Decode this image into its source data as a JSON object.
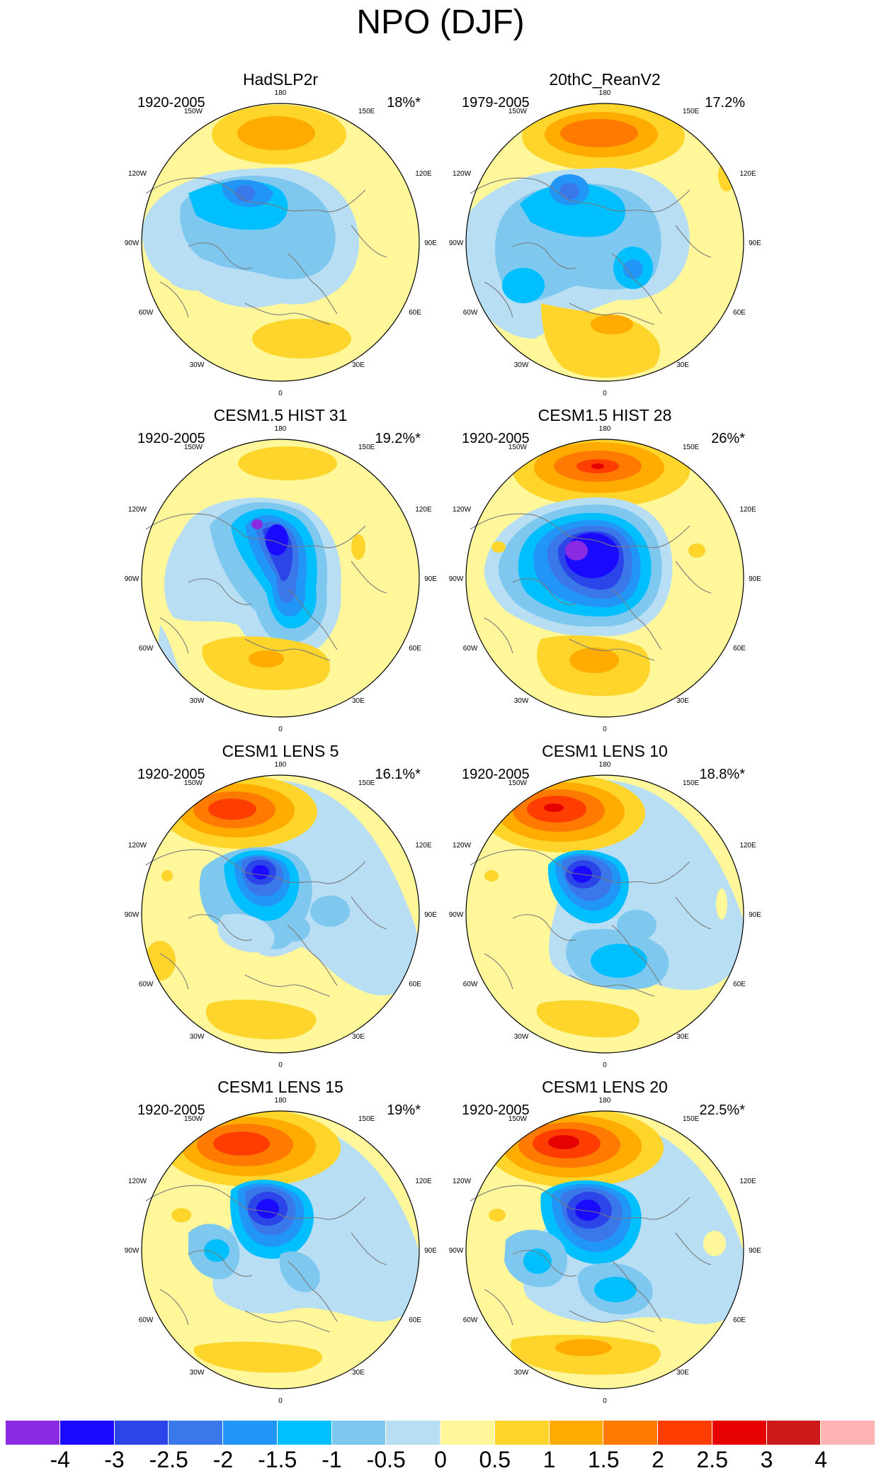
{
  "title": "NPO (DJF)",
  "lon_labels": {
    "top": "180",
    "bottom": "0",
    "upper_left": "150W",
    "upper_right": "150E",
    "left_upper": "120W",
    "right_upper": "120E",
    "left": "90W",
    "right": "90E",
    "left_lower": "60W",
    "right_lower": "60E",
    "lower_left": "30W",
    "lower_right": "30E"
  },
  "panels": [
    {
      "title": "HadSLP2r",
      "years": "1920-2005",
      "variance": "18%*"
    },
    {
      "title": "20thC_ReanV2",
      "years": "1979-2005",
      "variance": "17.2%"
    },
    {
      "title": "CESM1.5 HIST 31",
      "years": "1920-2005",
      "variance": "19.2%*"
    },
    {
      "title": "CESM1.5 HIST 28",
      "years": "1920-2005",
      "variance": "26%*"
    },
    {
      "title": "CESM1 LENS 5",
      "years": "1920-2005",
      "variance": "16.1%*"
    },
    {
      "title": "CESM1 LENS 10",
      "years": "1920-2005",
      "variance": "18.8%*"
    },
    {
      "title": "CESM1 LENS 15",
      "years": "1920-2005",
      "variance": "19%*"
    },
    {
      "title": "CESM1 LENS 20",
      "years": "1920-2005",
      "variance": "22.5%*"
    }
  ],
  "colorbar": {
    "labels": [
      "-4",
      "-3",
      "-2.5",
      "-2",
      "-1.5",
      "-1",
      "-0.5",
      "0",
      "0.5",
      "1",
      "1.5",
      "2",
      "2.5",
      "3",
      "4"
    ],
    "colors": [
      "#8a2be2",
      "#1a0aff",
      "#2b45e8",
      "#3a78ea",
      "#2196f6",
      "#00bfff",
      "#7ec8f0",
      "#b8def4",
      "#fff79a",
      "#ffd42b",
      "#ffab00",
      "#ff7a00",
      "#ff3d00",
      "#e60000",
      "#cc1a1a",
      "#ffb3b3"
    ]
  },
  "coastline_color": "#7a7a7a",
  "map_fill_color": "#fff79a"
}
